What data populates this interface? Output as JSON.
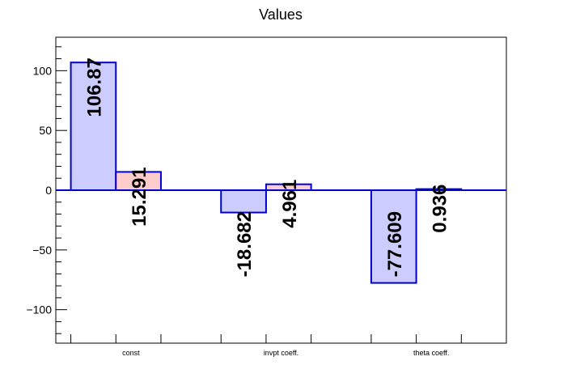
{
  "chart_data": {
    "type": "bar",
    "title": "Values",
    "categories": [
      "const",
      "invpt coeff.",
      "theta coeff."
    ],
    "ylim": [
      -128,
      128
    ],
    "yticks": [
      -100,
      -50,
      0,
      50,
      100
    ],
    "ytick_labels": [
      "−100",
      "−50",
      "0",
      "50",
      "100"
    ],
    "grid": false,
    "series": [
      {
        "values": [
          106.87,
          -18.682,
          -77.609
        ],
        "labels": [
          "106.87",
          "-18.682",
          "-77.609"
        ],
        "fill": "#ccccff",
        "stroke": "#0000cc"
      },
      {
        "values": [
          15.291,
          4.961,
          0.936
        ],
        "labels": [
          "15.291",
          "4.961",
          "0.936"
        ],
        "fills": [
          "#ffcccc",
          "#ffcccc",
          "#ccccff"
        ],
        "stroke": "#0000cc"
      }
    ],
    "zero_line_color": "#0000cc"
  }
}
